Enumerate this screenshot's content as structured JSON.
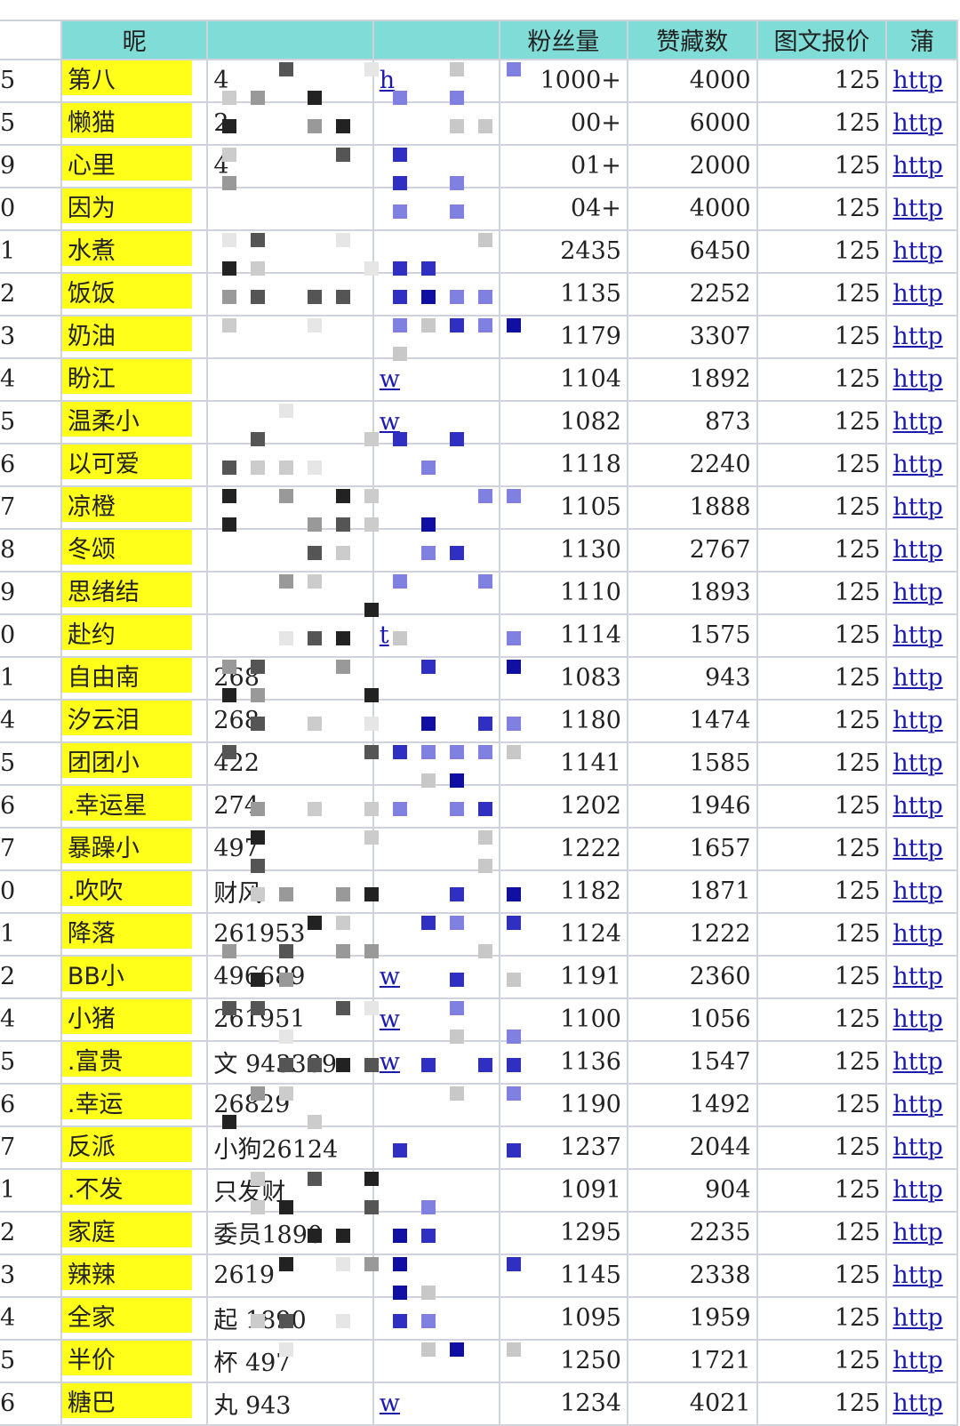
{
  "header": {
    "index": "",
    "nickname": "昵",
    "id": "",
    "link": "",
    "fans": "粉丝量",
    "likes": "赞藏数",
    "price": "图文报价",
    "last": "蒲"
  },
  "colors": {
    "header_bg": "#7fdcd6",
    "highlight": "#ffff1a",
    "link": "#1a1ab0",
    "grid": "#cfd3de"
  },
  "rows": [
    {
      "idx": "5",
      "nick": "第八",
      "id": "4",
      "link": "h",
      "fans": "1000+",
      "likes": "4000",
      "price": "125",
      "url": "http"
    },
    {
      "idx": "5",
      "nick": "懒猫",
      "id": "2",
      "link": "",
      "fans": "00+",
      "likes": "6000",
      "price": "125",
      "url": "http"
    },
    {
      "idx": "9",
      "nick": "心里",
      "id": "4",
      "link": "",
      "fans": "01+",
      "likes": "2000",
      "price": "125",
      "url": "http"
    },
    {
      "idx": "0",
      "nick": "因为",
      "id": "",
      "link": "",
      "fans": "04+",
      "likes": "4000",
      "price": "125",
      "url": "http"
    },
    {
      "idx": "1",
      "nick": "水煮",
      "id": "",
      "link": "",
      "fans": "2435",
      "likes": "6450",
      "price": "125",
      "url": "http"
    },
    {
      "idx": "2",
      "nick": "饭饭",
      "id": "",
      "link": "",
      "fans": "1135",
      "likes": "2252",
      "price": "125",
      "url": "http"
    },
    {
      "idx": "3",
      "nick": "奶油",
      "id": "",
      "link": "",
      "fans": "1179",
      "likes": "3307",
      "price": "125",
      "url": "http"
    },
    {
      "idx": "4",
      "nick": "盼江",
      "id": "",
      "link": "w",
      "fans": "1104",
      "likes": "1892",
      "price": "125",
      "url": "http"
    },
    {
      "idx": "5",
      "nick": "温柔小",
      "id": "",
      "link": "w",
      "fans": "1082",
      "likes": "873",
      "price": "125",
      "url": "http"
    },
    {
      "idx": "6",
      "nick": "以可爱",
      "id": "",
      "link": "",
      "fans": "1118",
      "likes": "2240",
      "price": "125",
      "url": "http"
    },
    {
      "idx": "7",
      "nick": "凉橙",
      "id": "",
      "link": "",
      "fans": "1105",
      "likes": "1888",
      "price": "125",
      "url": "http"
    },
    {
      "idx": "8",
      "nick": "冬颂",
      "id": "",
      "link": "",
      "fans": "1130",
      "likes": "2767",
      "price": "125",
      "url": "http"
    },
    {
      "idx": "9",
      "nick": "思绪结",
      "id": "",
      "link": "",
      "fans": "1110",
      "likes": "1893",
      "price": "125",
      "url": "http"
    },
    {
      "idx": "0",
      "nick": "赴约",
      "id": "",
      "link": "t",
      "fans": "1114",
      "likes": "1575",
      "price": "125",
      "url": "http"
    },
    {
      "idx": "1",
      "nick": "自由南",
      "id": "268",
      "link": "",
      "fans": "1083",
      "likes": "943",
      "price": "125",
      "url": "http"
    },
    {
      "idx": "4",
      "nick": "汐云泪",
      "id": "268",
      "link": "",
      "fans": "1180",
      "likes": "1474",
      "price": "125",
      "url": "http"
    },
    {
      "idx": "5",
      "nick": "团团小",
      "id": "422",
      "link": "",
      "fans": "1141",
      "likes": "1585",
      "price": "125",
      "url": "http"
    },
    {
      "idx": "6",
      "nick": ".幸运星",
      "id": "274",
      "link": "",
      "fans": "1202",
      "likes": "1946",
      "price": "125",
      "url": "http"
    },
    {
      "idx": "7",
      "nick": "暴躁小",
      "id": "497",
      "link": "",
      "fans": "1222",
      "likes": "1657",
      "price": "125",
      "url": "http"
    },
    {
      "idx": "0",
      "nick": ".吹吹",
      "id": "财风",
      "link": "",
      "fans": "1182",
      "likes": "1871",
      "price": "125",
      "url": "http"
    },
    {
      "idx": "1",
      "nick": "降落",
      "id": "261953",
      "link": "",
      "fans": "1124",
      "likes": "1222",
      "price": "125",
      "url": "http"
    },
    {
      "idx": "2",
      "nick": "BB小",
      "id": "496689",
      "link": "w",
      "fans": "1191",
      "likes": "2360",
      "price": "125",
      "url": "http"
    },
    {
      "idx": "4",
      "nick": "小猪",
      "id": "261951",
      "link": "w",
      "fans": "1100",
      "likes": "1056",
      "price": "125",
      "url": "http"
    },
    {
      "idx": "5",
      "nick": ".富贵",
      "id": "文 943389",
      "link": "w",
      "fans": "1136",
      "likes": "1547",
      "price": "125",
      "url": "http"
    },
    {
      "idx": "6",
      "nick": ".幸运",
      "id": "26829",
      "link": "",
      "fans": "1190",
      "likes": "1492",
      "price": "125",
      "url": "http"
    },
    {
      "idx": "7",
      "nick": "反派",
      "id": "小狗26124",
      "link": "",
      "fans": "1237",
      "likes": "2044",
      "price": "125",
      "url": "http"
    },
    {
      "idx": "1",
      "nick": ".不发",
      "id": "只发财",
      "link": "",
      "fans": "1091",
      "likes": "904",
      "price": "125",
      "url": "http"
    },
    {
      "idx": "2",
      "nick": "家庭",
      "id": "委员1890",
      "link": "",
      "fans": "1295",
      "likes": "2235",
      "price": "125",
      "url": "http"
    },
    {
      "idx": "3",
      "nick": "辣辣",
      "id": "2619",
      "link": "",
      "fans": "1145",
      "likes": "2338",
      "price": "125",
      "url": "http"
    },
    {
      "idx": "4",
      "nick": "全家",
      "id": "起 1890",
      "link": "",
      "fans": "1095",
      "likes": "1959",
      "price": "125",
      "url": "http"
    },
    {
      "idx": "5",
      "nick": "半价",
      "id": "杯 497",
      "link": "",
      "fans": "1250",
      "likes": "1721",
      "price": "125",
      "url": "http"
    },
    {
      "idx": "6",
      "nick": "糖巴",
      "id": "丸 943",
      "link": "w",
      "fans": "1234",
      "likes": "4021",
      "price": "125",
      "url": "http"
    }
  ]
}
